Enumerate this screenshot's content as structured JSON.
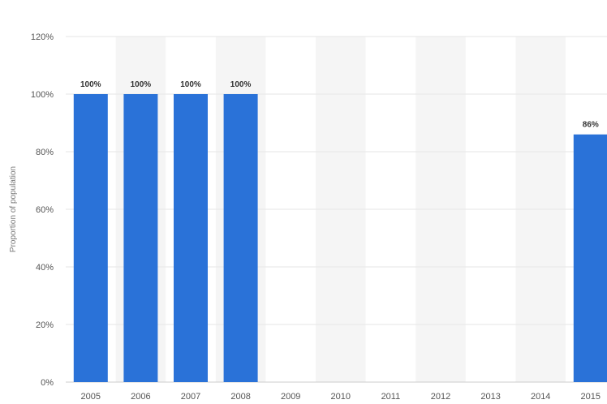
{
  "chart_data": {
    "type": "bar",
    "title": "",
    "xlabel": "",
    "ylabel": "Proportion of population",
    "categories": [
      "2005",
      "2006",
      "2007",
      "2008",
      "2009",
      "2010",
      "2011",
      "2012",
      "2013",
      "2014",
      "2015"
    ],
    "values": [
      100,
      100,
      100,
      100,
      null,
      null,
      null,
      null,
      null,
      null,
      86
    ],
    "data_labels": [
      "100%",
      "100%",
      "100%",
      "100%",
      "",
      "",
      "",
      "",
      "",
      "",
      "86%"
    ],
    "ylim": [
      0,
      120
    ],
    "yticks": [
      0,
      20,
      40,
      60,
      80,
      100,
      120
    ],
    "ytick_labels": [
      "0%",
      "20%",
      "40%",
      "60%",
      "80%",
      "100%",
      "120%"
    ],
    "grid": true,
    "bar_color": "#2a72d8",
    "band_color": "#f5f5f5",
    "grid_color": "#e6e6e6"
  }
}
